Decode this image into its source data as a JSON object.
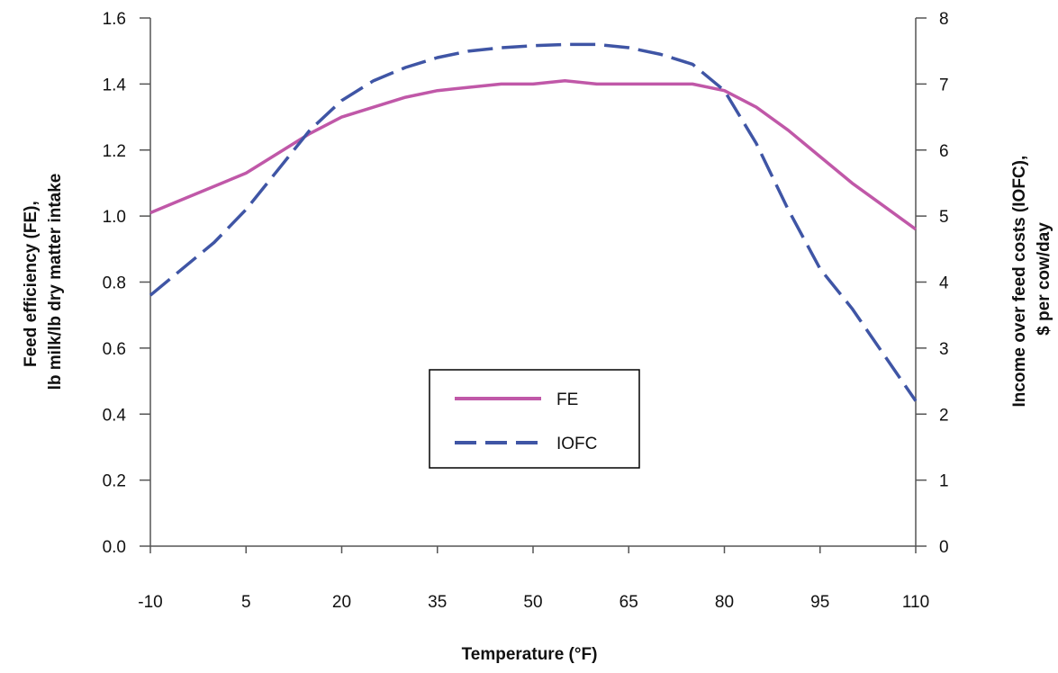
{
  "chart_data": {
    "type": "line",
    "xlabel": "Temperature (°F)",
    "ylabel_left": [
      "Feed efficiency (FE),",
      "lb milk/lb dry matter intake"
    ],
    "ylabel_right": [
      "Income over feed costs (IOFC),",
      "$ per cow/day"
    ],
    "x_ticks": [
      -10,
      5,
      20,
      35,
      50,
      65,
      80,
      95,
      110
    ],
    "xlim": [
      -10,
      110
    ],
    "y_left_ticks": [
      "0.0",
      "0.2",
      "0.4",
      "0.6",
      "0.8",
      "1.0",
      "1.2",
      "1.4",
      "1.6"
    ],
    "ylim_left": [
      0,
      1.6
    ],
    "y_right_ticks": [
      "0",
      "1",
      "2",
      "3",
      "4",
      "5",
      "6",
      "7",
      "8"
    ],
    "ylim_right": [
      0,
      8
    ],
    "grid": false,
    "legend_position": "center-bottom",
    "series": [
      {
        "name": "FE",
        "axis": "left",
        "color": "#c058a8",
        "style": "solid",
        "x": [
          -10,
          -5,
          0,
          5,
          10,
          15,
          20,
          25,
          30,
          35,
          40,
          45,
          50,
          55,
          60,
          65,
          70,
          75,
          80,
          85,
          90,
          95,
          100,
          105,
          110
        ],
        "y": [
          1.01,
          1.05,
          1.09,
          1.13,
          1.19,
          1.25,
          1.3,
          1.33,
          1.36,
          1.38,
          1.39,
          1.4,
          1.4,
          1.41,
          1.4,
          1.4,
          1.4,
          1.4,
          1.38,
          1.33,
          1.26,
          1.18,
          1.1,
          1.03,
          0.96
        ]
      },
      {
        "name": "IOFC",
        "axis": "right",
        "color": "#3f55a5",
        "style": "dashed",
        "x": [
          -10,
          -5,
          0,
          5,
          10,
          15,
          20,
          25,
          30,
          35,
          40,
          45,
          50,
          55,
          60,
          65,
          70,
          75,
          80,
          85,
          90,
          95,
          100,
          105,
          110
        ],
        "y": [
          3.8,
          4.2,
          4.6,
          5.1,
          5.7,
          6.3,
          6.75,
          7.05,
          7.25,
          7.4,
          7.5,
          7.55,
          7.58,
          7.6,
          7.6,
          7.55,
          7.45,
          7.3,
          6.9,
          6.1,
          5.1,
          4.2,
          3.6,
          2.9,
          2.2
        ]
      }
    ]
  }
}
